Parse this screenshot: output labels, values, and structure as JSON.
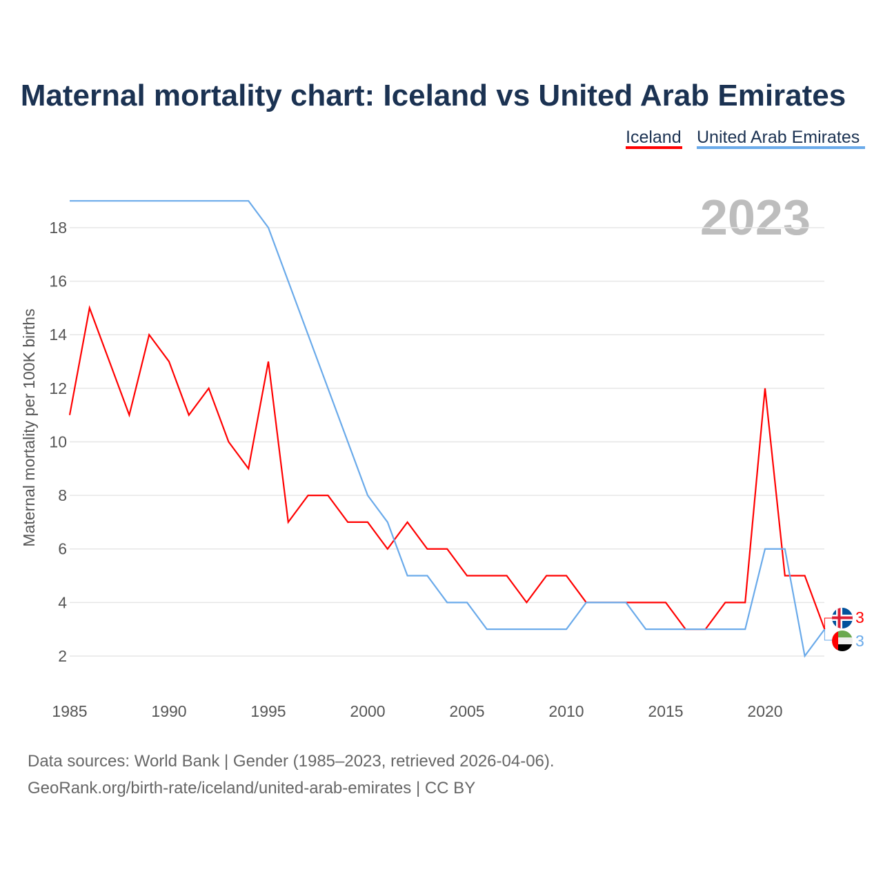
{
  "chart_data": {
    "type": "line",
    "title": "Maternal mortality chart: Iceland vs United Arab Emirates",
    "xlabel": "",
    "ylabel": "Maternal mortality per 100K births",
    "xlim": [
      1985,
      2023
    ],
    "ylim": [
      1,
      19
    ],
    "x_ticks": [
      1985,
      1990,
      1995,
      2000,
      2005,
      2010,
      2015,
      2020
    ],
    "y_ticks": [
      2,
      4,
      6,
      8,
      10,
      12,
      14,
      16,
      18
    ],
    "grid": true,
    "legend_position": "top-right",
    "year_label": "2023",
    "x": [
      1985,
      1986,
      1987,
      1988,
      1989,
      1990,
      1991,
      1992,
      1993,
      1994,
      1995,
      1996,
      1997,
      1998,
      1999,
      2000,
      2001,
      2002,
      2003,
      2004,
      2005,
      2006,
      2007,
      2008,
      2009,
      2010,
      2011,
      2012,
      2013,
      2014,
      2015,
      2016,
      2017,
      2018,
      2019,
      2020,
      2021,
      2022,
      2023
    ],
    "series": [
      {
        "name": "Iceland",
        "color": "#ff0000",
        "end_label": "3",
        "values": [
          11,
          15,
          13,
          11,
          14,
          13,
          11,
          12,
          10,
          9,
          13,
          7,
          8,
          8,
          7,
          7,
          6,
          7,
          6,
          6,
          5,
          5,
          5,
          4,
          5,
          5,
          4,
          4,
          4,
          4,
          4,
          3,
          3,
          4,
          4,
          12,
          5,
          5,
          3
        ]
      },
      {
        "name": "United Arab Emirates",
        "color": "#6aaaea",
        "end_label": "3",
        "values": [
          19,
          19,
          19,
          19,
          19,
          19,
          19,
          19,
          19,
          19,
          18,
          16,
          14,
          12,
          10,
          8,
          7,
          5,
          5,
          4,
          4,
          3,
          3,
          3,
          3,
          3,
          4,
          4,
          4,
          3,
          3,
          3,
          3,
          3,
          3,
          6,
          6,
          2,
          3
        ]
      }
    ]
  },
  "footer": {
    "line1": "Data sources: World Bank | Gender (1985–2023, retrieved 2026-04-06).",
    "line2": "GeoRank.org/birth-rate/iceland/united-arab-emirates | CC BY"
  }
}
